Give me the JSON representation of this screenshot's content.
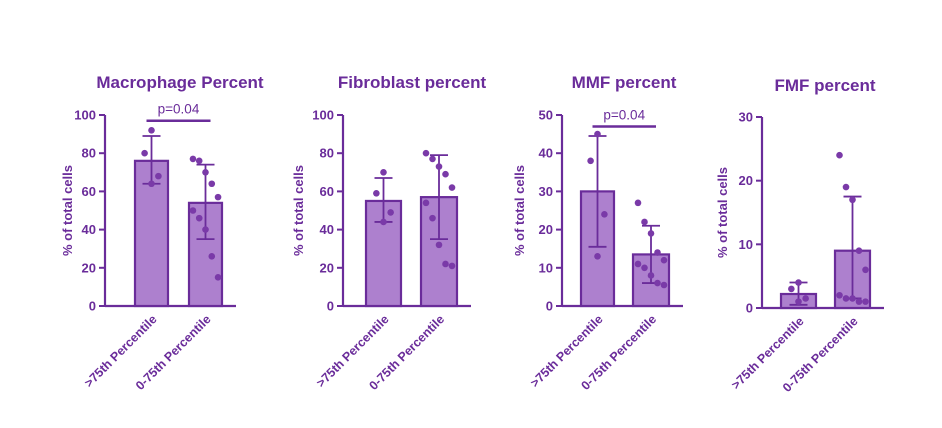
{
  "colors": {
    "axis": "#6a2c9a",
    "bar_fill": "#ad80ce",
    "bar_stroke": "#6a2c9a",
    "point": "#7a3aa8",
    "text": "#6a2c9a"
  },
  "chart_data": [
    {
      "type": "bar",
      "title": "Macrophage Percent",
      "ylabel": "% of total cells",
      "ylim": [
        0,
        100
      ],
      "yticks": [
        0,
        20,
        40,
        60,
        80,
        100
      ],
      "categories": [
        ">75th Percentile",
        "0-75th Percentile"
      ],
      "values": [
        76,
        54
      ],
      "error": [
        [
          64,
          89
        ],
        [
          35,
          74
        ]
      ],
      "points": [
        [
          92,
          80,
          68,
          64
        ],
        [
          77,
          76,
          70,
          64,
          57,
          50,
          46,
          40,
          26,
          15
        ]
      ],
      "significance": {
        "label": "p=0.04",
        "value": 97
      }
    },
    {
      "type": "bar",
      "title": "Fibroblast percent",
      "ylabel": "% of total cells",
      "ylim": [
        0,
        100
      ],
      "yticks": [
        0,
        20,
        40,
        60,
        80,
        100
      ],
      "categories": [
        ">75th Percentile",
        "0-75th Percentile"
      ],
      "values": [
        55,
        57
      ],
      "error": [
        [
          44,
          67
        ],
        [
          35,
          79
        ]
      ],
      "points": [
        [
          70,
          59,
          49,
          44
        ],
        [
          80,
          77,
          73,
          69,
          62,
          54,
          46,
          32,
          22,
          21
        ]
      ],
      "significance": null
    },
    {
      "type": "bar",
      "title": "MMF percent",
      "ylabel": "% of total cells",
      "ylim": [
        0,
        50
      ],
      "yticks": [
        0,
        10,
        20,
        30,
        40,
        50
      ],
      "categories": [
        ">75th Percentile",
        "0-75th Percentile"
      ],
      "values": [
        30,
        13.5
      ],
      "error": [
        [
          15.5,
          44.5
        ],
        [
          6,
          21
        ]
      ],
      "points": [
        [
          45,
          38,
          24,
          13
        ],
        [
          27,
          22,
          19,
          14,
          12,
          11,
          10,
          8,
          6,
          5.5
        ]
      ],
      "significance": {
        "label": "p=0.04",
        "value": 47
      }
    },
    {
      "type": "bar",
      "title": "FMF percent",
      "ylabel": "% of total cells",
      "ylim": [
        0,
        30
      ],
      "yticks": [
        0,
        10,
        20,
        30
      ],
      "categories": [
        ">75th Percentile",
        "0-75th Percentile"
      ],
      "values": [
        2.2,
        9
      ],
      "error": [
        [
          0.5,
          4
        ],
        [
          1.5,
          17.5
        ]
      ],
      "points": [
        [
          4,
          3,
          1.5,
          1
        ],
        [
          24,
          19,
          17,
          9,
          6,
          2,
          1.5,
          1.5,
          1,
          1
        ]
      ],
      "significance": null
    }
  ]
}
